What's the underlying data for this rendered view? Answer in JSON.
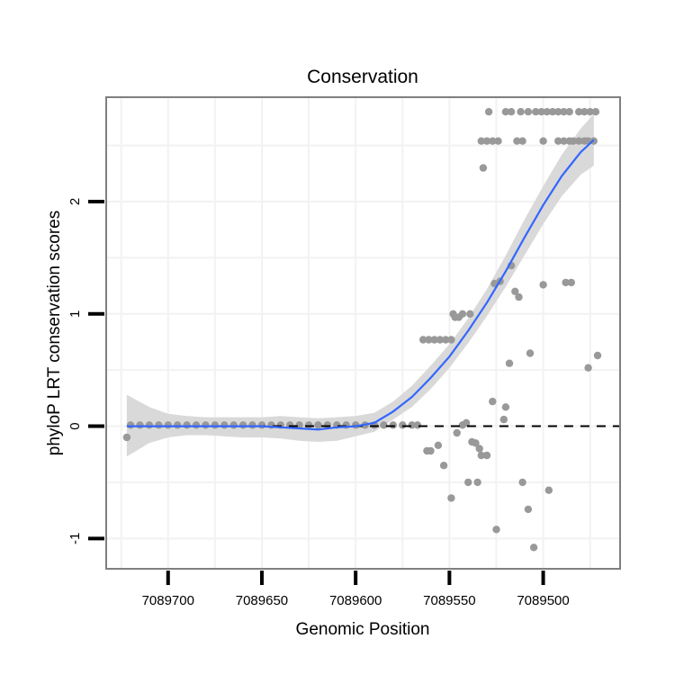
{
  "chart_data": {
    "type": "scatter",
    "title": "Conservation",
    "xlabel": "Genomic Position",
    "ylabel": "phyloP LRT conservation scores",
    "x_reversed": true,
    "xlim": [
      7089733,
      7089459
    ],
    "ylim": [
      -1.27,
      2.93
    ],
    "x_ticks": [
      7089700,
      7089650,
      7089600,
      7089550,
      7089500
    ],
    "x_tick_labels": [
      "7089700",
      "7089650",
      "7089600",
      "7089550",
      "7089500"
    ],
    "y_ticks": [
      -1,
      0,
      1,
      2
    ],
    "y_tick_labels": [
      "-1",
      "0",
      "1",
      "2"
    ],
    "grid": true,
    "colors": {
      "points": "#999999",
      "smooth_line": "#3366ff",
      "ribbon": "#d9d9d9",
      "panel_border": "#7f7f7f",
      "grid": "#f2f2f2",
      "reference_line": "#000000"
    },
    "reference_line": {
      "y": 0,
      "style": "dashed"
    },
    "points": [
      {
        "x": 7089722,
        "y": -0.1
      },
      {
        "x": 7089720,
        "y": 0.01
      },
      {
        "x": 7089715,
        "y": 0.01
      },
      {
        "x": 7089710,
        "y": 0.01
      },
      {
        "x": 7089705,
        "y": 0.01
      },
      {
        "x": 7089700,
        "y": 0.01
      },
      {
        "x": 7089695,
        "y": 0.01
      },
      {
        "x": 7089690,
        "y": 0.01
      },
      {
        "x": 7089685,
        "y": 0.01
      },
      {
        "x": 7089680,
        "y": 0.01
      },
      {
        "x": 7089675,
        "y": 0.01
      },
      {
        "x": 7089670,
        "y": 0.01
      },
      {
        "x": 7089665,
        "y": 0.01
      },
      {
        "x": 7089660,
        "y": 0.01
      },
      {
        "x": 7089655,
        "y": 0.01
      },
      {
        "x": 7089650,
        "y": 0.01
      },
      {
        "x": 7089645,
        "y": 0.01
      },
      {
        "x": 7089640,
        "y": 0.01
      },
      {
        "x": 7089635,
        "y": 0.01
      },
      {
        "x": 7089630,
        "y": 0.01
      },
      {
        "x": 7089625,
        "y": 0.01
      },
      {
        "x": 7089620,
        "y": 0.01
      },
      {
        "x": 7089615,
        "y": 0.01
      },
      {
        "x": 7089610,
        "y": 0.01
      },
      {
        "x": 7089605,
        "y": 0.01
      },
      {
        "x": 7089600,
        "y": 0.01
      },
      {
        "x": 7089595,
        "y": 0.01
      },
      {
        "x": 7089590,
        "y": 0.01
      },
      {
        "x": 7089585,
        "y": 0.01
      },
      {
        "x": 7089580,
        "y": 0.01
      },
      {
        "x": 7089575,
        "y": 0.01
      },
      {
        "x": 7089570,
        "y": 0.01
      },
      {
        "x": 7089567,
        "y": 0.01
      },
      {
        "x": 7089564,
        "y": 0.77
      },
      {
        "x": 7089561,
        "y": 0.77
      },
      {
        "x": 7089558,
        "y": 0.77
      },
      {
        "x": 7089555,
        "y": 0.77
      },
      {
        "x": 7089552,
        "y": 0.77
      },
      {
        "x": 7089549,
        "y": 0.77
      },
      {
        "x": 7089562,
        "y": -0.22
      },
      {
        "x": 7089560,
        "y": -0.22
      },
      {
        "x": 7089556,
        "y": -0.17
      },
      {
        "x": 7089553,
        "y": -0.35
      },
      {
        "x": 7089549,
        "y": -0.64
      },
      {
        "x": 7089548,
        "y": 1.0
      },
      {
        "x": 7089547,
        "y": 0.97
      },
      {
        "x": 7089545,
        "y": 0.97
      },
      {
        "x": 7089543,
        "y": 1.0
      },
      {
        "x": 7089539,
        "y": 1.0
      },
      {
        "x": 7089546,
        "y": -0.06
      },
      {
        "x": 7089543,
        "y": 0.01
      },
      {
        "x": 7089541,
        "y": 0.03
      },
      {
        "x": 7089540,
        "y": -0.5
      },
      {
        "x": 7089538,
        "y": -0.14
      },
      {
        "x": 7089536,
        "y": -0.15
      },
      {
        "x": 7089535,
        "y": -0.5
      },
      {
        "x": 7089534,
        "y": -0.2
      },
      {
        "x": 7089533,
        "y": -0.26
      },
      {
        "x": 7089530,
        "y": -0.26
      },
      {
        "x": 7089533,
        "y": 2.54
      },
      {
        "x": 7089530,
        "y": 2.54
      },
      {
        "x": 7089527,
        "y": 2.54
      },
      {
        "x": 7089524,
        "y": 2.54
      },
      {
        "x": 7089532,
        "y": 2.3
      },
      {
        "x": 7089529,
        "y": 2.8
      },
      {
        "x": 7089520,
        "y": 2.8
      },
      {
        "x": 7089517,
        "y": 2.8
      },
      {
        "x": 7089512,
        "y": 2.8
      },
      {
        "x": 7089508,
        "y": 2.8
      },
      {
        "x": 7089504,
        "y": 2.8
      },
      {
        "x": 7089501,
        "y": 2.8
      },
      {
        "x": 7089498,
        "y": 2.8
      },
      {
        "x": 7089495,
        "y": 2.8
      },
      {
        "x": 7089492,
        "y": 2.8
      },
      {
        "x": 7089489,
        "y": 2.8
      },
      {
        "x": 7089486,
        "y": 2.8
      },
      {
        "x": 7089481,
        "y": 2.8
      },
      {
        "x": 7089478,
        "y": 2.8
      },
      {
        "x": 7089475,
        "y": 2.8
      },
      {
        "x": 7089472,
        "y": 2.8
      },
      {
        "x": 7089514,
        "y": 2.54
      },
      {
        "x": 7089511,
        "y": 2.54
      },
      {
        "x": 7089500,
        "y": 2.54
      },
      {
        "x": 7089492,
        "y": 2.54
      },
      {
        "x": 7089489,
        "y": 2.54
      },
      {
        "x": 7089486,
        "y": 2.54
      },
      {
        "x": 7089484,
        "y": 2.54
      },
      {
        "x": 7089481,
        "y": 2.54
      },
      {
        "x": 7089478,
        "y": 2.54
      },
      {
        "x": 7089476,
        "y": 2.54
      },
      {
        "x": 7089473,
        "y": 2.54
      },
      {
        "x": 7089527,
        "y": 0.22
      },
      {
        "x": 7089526,
        "y": 1.27
      },
      {
        "x": 7089523,
        "y": 1.29
      },
      {
        "x": 7089521,
        "y": 0.06
      },
      {
        "x": 7089520,
        "y": 0.17
      },
      {
        "x": 7089518,
        "y": 0.56
      },
      {
        "x": 7089517,
        "y": 1.43
      },
      {
        "x": 7089515,
        "y": 1.2
      },
      {
        "x": 7089513,
        "y": 1.15
      },
      {
        "x": 7089511,
        "y": -0.5
      },
      {
        "x": 7089508,
        "y": -0.74
      },
      {
        "x": 7089507,
        "y": 0.65
      },
      {
        "x": 7089505,
        "y": -1.08
      },
      {
        "x": 7089500,
        "y": 1.26
      },
      {
        "x": 7089497,
        "y": -0.57
      },
      {
        "x": 7089488,
        "y": 1.28
      },
      {
        "x": 7089485,
        "y": 1.28
      },
      {
        "x": 7089476,
        "y": 0.52
      },
      {
        "x": 7089471,
        "y": 0.63
      },
      {
        "x": 7089525,
        "y": -0.92
      }
    ],
    "smooth": {
      "x": [
        7089722,
        7089710,
        7089700,
        7089690,
        7089680,
        7089670,
        7089660,
        7089650,
        7089640,
        7089630,
        7089620,
        7089610,
        7089600,
        7089590,
        7089580,
        7089570,
        7089560,
        7089550,
        7089540,
        7089530,
        7089520,
        7089510,
        7089500,
        7089490,
        7089480,
        7089473
      ],
      "y": [
        0.0,
        0.0,
        0.0,
        0.0,
        0.0,
        0.0,
        0.0,
        0.0,
        -0.01,
        -0.02,
        -0.03,
        -0.01,
        0.0,
        0.03,
        0.13,
        0.26,
        0.43,
        0.62,
        0.85,
        1.1,
        1.38,
        1.68,
        1.97,
        2.23,
        2.44,
        2.55
      ],
      "lower": [
        -0.27,
        -0.15,
        -0.1,
        -0.08,
        -0.08,
        -0.09,
        -0.1,
        -0.1,
        -0.11,
        -0.13,
        -0.14,
        -0.13,
        -0.09,
        -0.05,
        0.06,
        0.17,
        0.33,
        0.52,
        0.74,
        0.98,
        1.24,
        1.52,
        1.8,
        2.05,
        2.24,
        2.32
      ],
      "upper": [
        0.28,
        0.17,
        0.11,
        0.09,
        0.08,
        0.08,
        0.08,
        0.08,
        0.09,
        0.08,
        0.07,
        0.08,
        0.09,
        0.12,
        0.22,
        0.36,
        0.54,
        0.73,
        0.96,
        1.22,
        1.52,
        1.84,
        2.14,
        2.42,
        2.65,
        2.78
      ]
    }
  }
}
